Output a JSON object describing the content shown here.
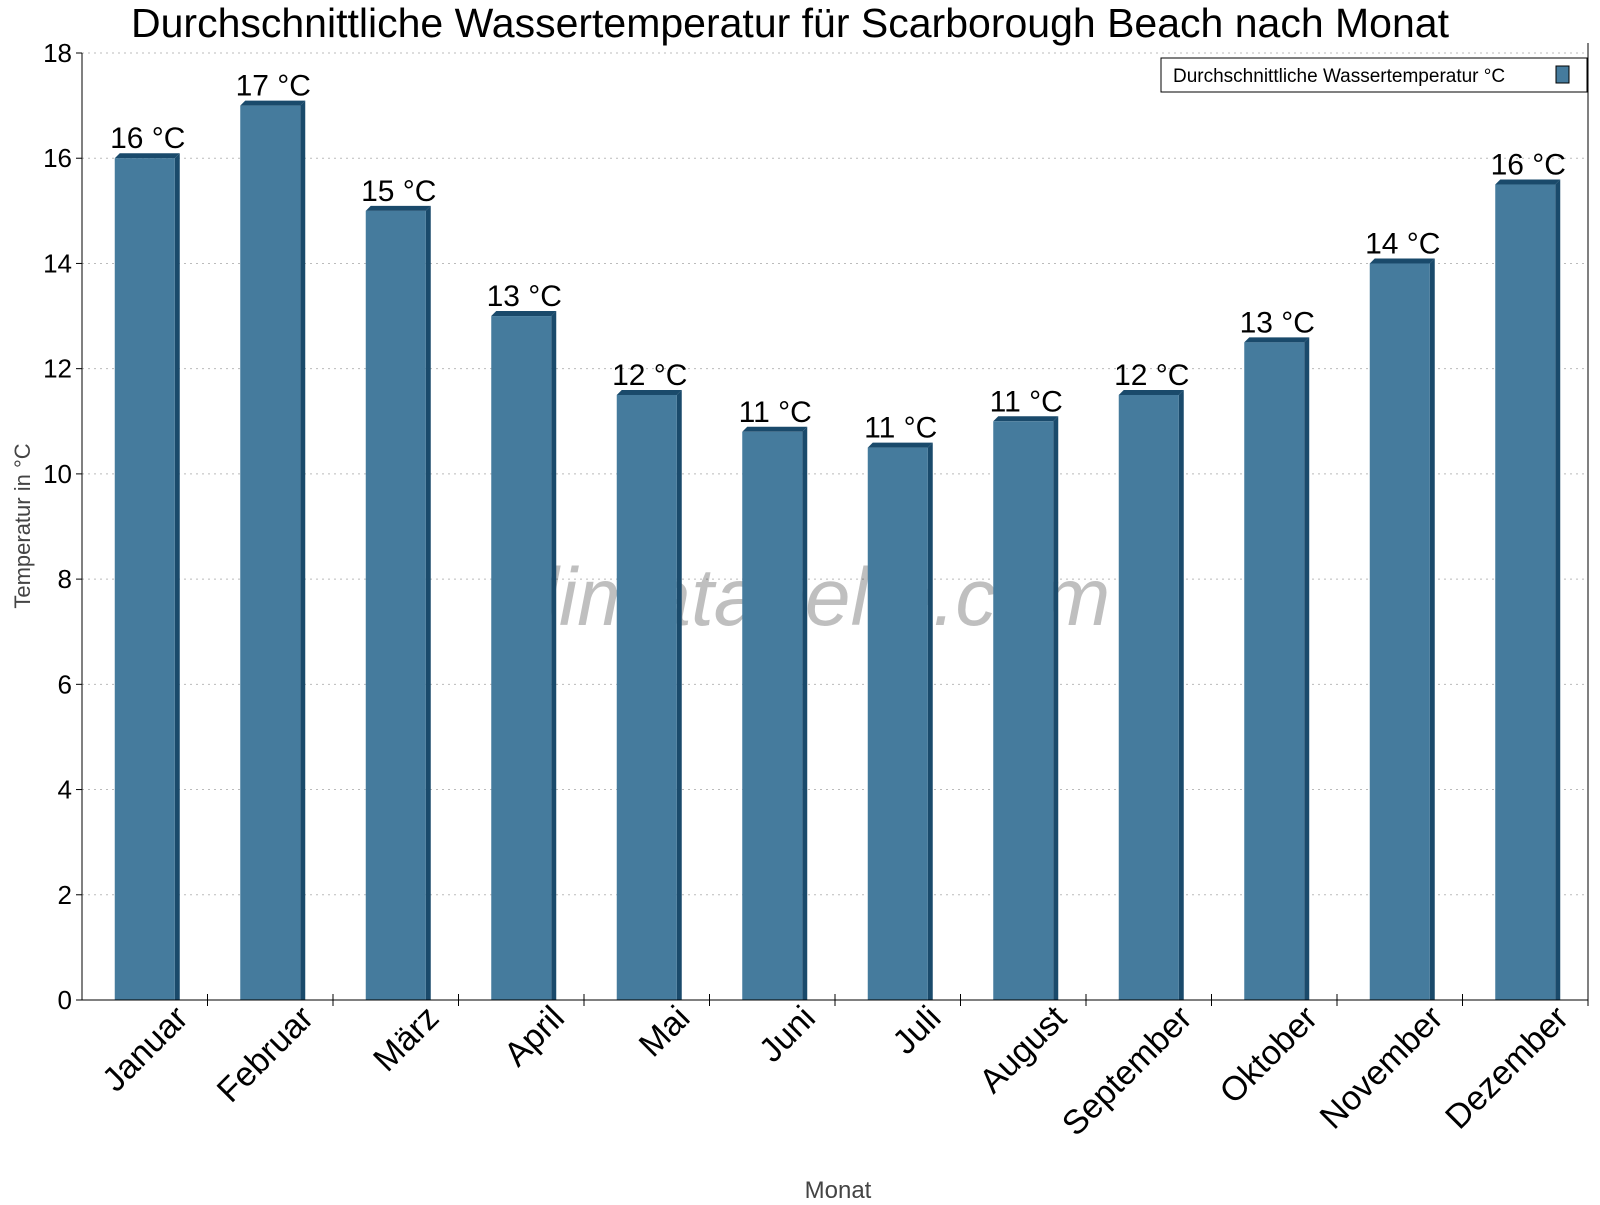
{
  "chart_data": {
    "type": "bar",
    "title": "Durchschnittliche Wassertemperatur für Scarborough Beach nach Monat",
    "xlabel": "Monat",
    "ylabel": "Temperatur in °C",
    "categories": [
      "Januar",
      "Februar",
      "März",
      "April",
      "Mai",
      "Juni",
      "Juli",
      "August",
      "September",
      "Oktober",
      "November",
      "Dezember"
    ],
    "series": [
      {
        "name": "Durchschnittliche Wassertemperatur °C",
        "values": [
          16.0,
          17.0,
          15.0,
          13.0,
          11.5,
          10.8,
          10.5,
          11.0,
          11.5,
          12.5,
          14.0,
          15.5
        ],
        "labels": [
          "16 °C",
          "17 °C",
          "15 °C",
          "13 °C",
          "12 °C",
          "11 °C",
          "11 °C",
          "11 °C",
          "12 °C",
          "13 °C",
          "14 °C",
          "16 °C"
        ]
      }
    ],
    "ylim": [
      0,
      18
    ],
    "yticks": [
      0,
      2,
      4,
      6,
      8,
      10,
      12,
      14,
      16,
      18
    ],
    "grid": true,
    "legend": "top-right",
    "colors": {
      "bar": "#457b9d",
      "bar_edge": "#1a4a6b"
    },
    "watermark": "klimatabelle.com"
  }
}
